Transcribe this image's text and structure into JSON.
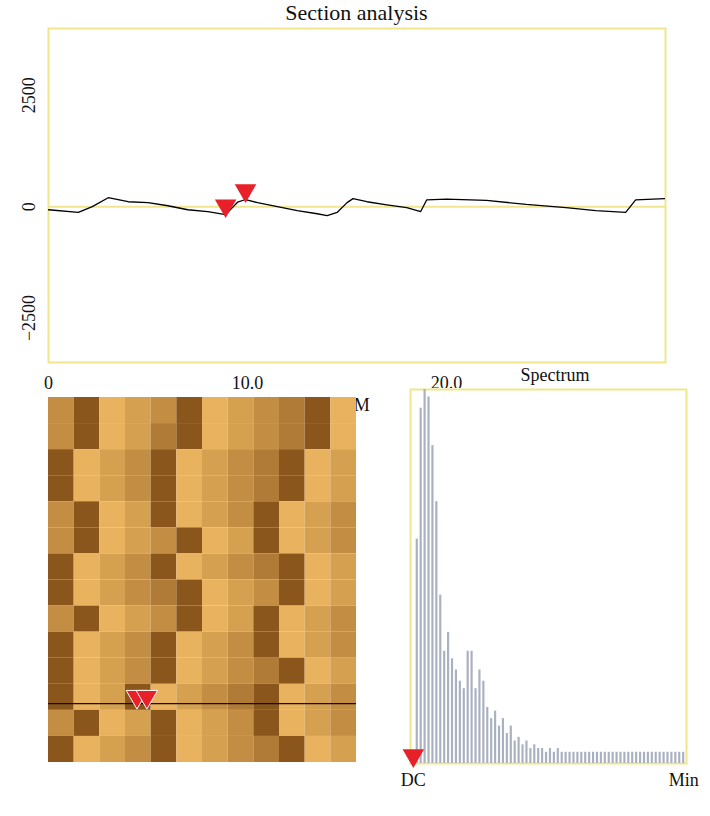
{
  "chart_data": [
    {
      "type": "line",
      "title": "Section analysis",
      "x_label": "μM",
      "x": [
        0,
        1.5,
        2.2,
        3,
        4,
        5,
        6,
        7,
        8,
        8.9,
        9.5,
        9.9,
        10.5,
        11.5,
        12.5,
        13.5,
        14,
        14.5,
        15,
        15.3,
        16,
        17,
        18,
        18.7,
        19,
        20,
        22,
        24,
        26,
        27.5,
        29,
        29.5,
        31
      ],
      "values": [
        -70,
        -130,
        0,
        200,
        110,
        90,
        20,
        -70,
        -110,
        -180,
        100,
        160,
        90,
        0,
        -90,
        -160,
        -200,
        -130,
        90,
        180,
        110,
        40,
        -20,
        -110,
        150,
        170,
        140,
        50,
        -20,
        -90,
        -130,
        150,
        180
      ],
      "color": "#000000",
      "xlim": [
        0,
        31
      ],
      "xticks": [
        0,
        {
          "value": 10,
          "label": "10.0"
        },
        {
          "value": 20,
          "label": "20.0"
        }
      ],
      "ylim": [
        -3500,
        4000
      ],
      "yticks": [
        {
          "value": -2500,
          "label": "−2500"
        },
        0,
        2500
      ],
      "baseline": 0,
      "markers": {
        "x": [
          8.9,
          9.9
        ],
        "y": [
          -180,
          160
        ],
        "color": "#e8202a",
        "marker": "triangle"
      }
    },
    {
      "type": "heatmap",
      "xlim": [
        0,
        31
      ],
      "ylim": [
        0,
        31
      ],
      "tick_labels": false,
      "cells": [
        [
          6,
          3,
          8,
          7,
          6,
          3,
          8,
          7,
          6,
          5,
          3,
          8
        ],
        [
          6,
          3,
          8,
          7,
          5,
          3,
          8,
          7,
          6,
          5,
          3,
          8
        ],
        [
          3,
          8,
          7,
          6,
          3,
          8,
          7,
          6,
          5,
          3,
          8,
          7
        ],
        [
          3,
          8,
          7,
          6,
          3,
          8,
          7,
          6,
          5,
          3,
          8,
          7
        ],
        [
          6,
          3,
          8,
          7,
          3,
          8,
          7,
          6,
          3,
          8,
          7,
          6
        ],
        [
          6,
          3,
          8,
          7,
          6,
          3,
          8,
          7,
          3,
          8,
          7,
          6
        ],
        [
          3,
          8,
          7,
          6,
          3,
          8,
          7,
          6,
          5,
          3,
          8,
          7
        ],
        [
          3,
          8,
          7,
          6,
          5,
          3,
          8,
          7,
          6,
          3,
          8,
          7
        ],
        [
          6,
          3,
          8,
          7,
          6,
          3,
          8,
          7,
          3,
          8,
          7,
          6
        ],
        [
          3,
          8,
          7,
          6,
          3,
          8,
          7,
          6,
          3,
          8,
          7,
          6
        ],
        [
          3,
          8,
          7,
          6,
          3,
          8,
          7,
          6,
          5,
          3,
          8,
          7
        ],
        [
          3,
          8,
          7,
          3,
          8,
          7,
          6,
          5,
          3,
          8,
          7,
          6
        ],
        [
          6,
          3,
          8,
          7,
          3,
          8,
          7,
          6,
          3,
          8,
          7,
          6
        ],
        [
          3,
          8,
          7,
          6,
          3,
          8,
          7,
          6,
          5,
          3,
          8,
          7
        ]
      ],
      "section_y": 26,
      "markers": {
        "x": [
          8.9,
          9.9
        ],
        "color": "#e8202a",
        "marker": "triangle"
      }
    },
    {
      "type": "bar",
      "title": "Spectrum",
      "tick_labels": "x",
      "color": "#a9b0c0",
      "categories": [
        "DC",
        null,
        null,
        null,
        null,
        null,
        null,
        null,
        null,
        null,
        null,
        null,
        null,
        null,
        null,
        null,
        null,
        null,
        null,
        null,
        null,
        null,
        null,
        null,
        null,
        null,
        null,
        null,
        null,
        null,
        null,
        null,
        null,
        null,
        null,
        null,
        null,
        null,
        null,
        null,
        null,
        null,
        null,
        null,
        null,
        null,
        null,
        null,
        null,
        null,
        null,
        null,
        null,
        null,
        null,
        null,
        null,
        null,
        null,
        null,
        null,
        null,
        null,
        null,
        null,
        null,
        null,
        null,
        null,
        "Min"
      ],
      "values": [
        2,
        60,
        95,
        100,
        98,
        85,
        70,
        45,
        30,
        35,
        28,
        25,
        22,
        20,
        30,
        30,
        20,
        25,
        22,
        15,
        12,
        14,
        10,
        12,
        8,
        10,
        6,
        7,
        5,
        6,
        4,
        5,
        4,
        4,
        3,
        4,
        3,
        4,
        3,
        3,
        3,
        3,
        3,
        3,
        3,
        3,
        3,
        3,
        3,
        3,
        3,
        3,
        3,
        3,
        3,
        3,
        3,
        3,
        3,
        3,
        3,
        3,
        3,
        3,
        3,
        3,
        3,
        3,
        3,
        3
      ],
      "ylim": [
        0,
        100
      ],
      "markers": {
        "x": [
          0
        ],
        "color": "#e8202a",
        "marker": "triangle"
      }
    }
  ]
}
